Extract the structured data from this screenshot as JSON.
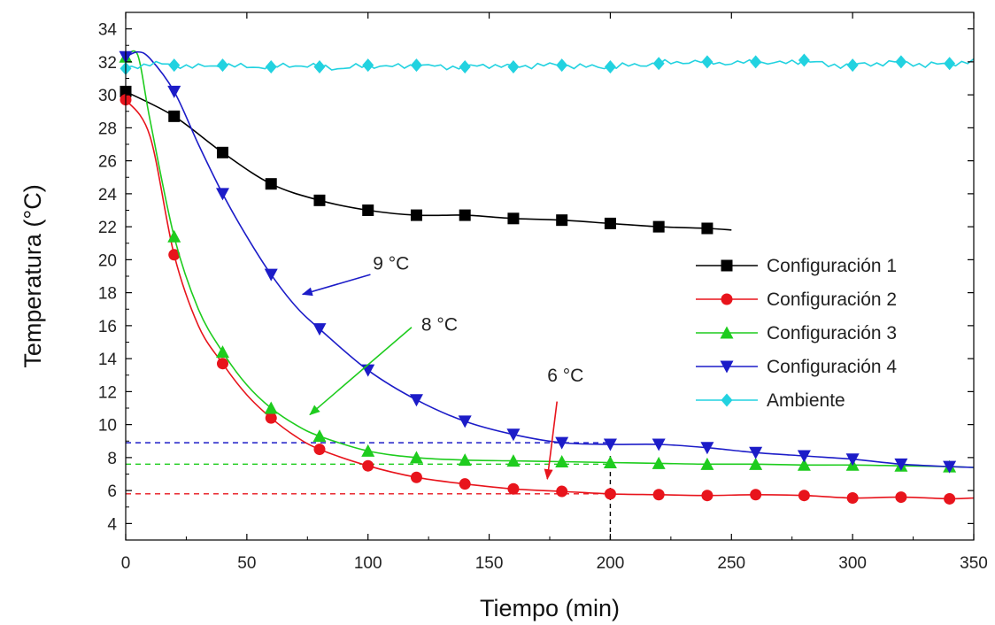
{
  "chart_data": {
    "type": "line",
    "xlabel": "Tiempo (min)",
    "ylabel": "Temperatura (°C)",
    "xlim": [
      0,
      350
    ],
    "ylim": [
      3,
      35
    ],
    "xticks": [
      0,
      50,
      100,
      150,
      200,
      250,
      300,
      350
    ],
    "yticks": [
      4,
      6,
      8,
      10,
      12,
      14,
      16,
      18,
      20,
      22,
      24,
      26,
      28,
      30,
      32,
      34
    ],
    "grid": false,
    "legend_position": "right",
    "series": [
      {
        "name": "Configuración 1",
        "color": "#000000",
        "marker": "square",
        "x": [
          0,
          20,
          40,
          60,
          80,
          100,
          120,
          140,
          160,
          180,
          200,
          220,
          240,
          250
        ],
        "values": [
          30.2,
          28.7,
          26.5,
          24.6,
          23.6,
          23.0,
          22.7,
          22.7,
          22.5,
          22.4,
          22.2,
          22.0,
          21.9,
          21.8
        ],
        "marker_x": [
          0,
          20,
          40,
          60,
          80,
          100,
          120,
          140,
          160,
          180,
          200,
          220,
          240
        ]
      },
      {
        "name": "Configuración 2",
        "color": "#e8141c",
        "marker": "circle",
        "x": [
          0,
          10,
          20,
          30,
          40,
          50,
          60,
          70,
          80,
          100,
          120,
          140,
          160,
          180,
          200,
          220,
          240,
          260,
          280,
          300,
          320,
          340,
          350
        ],
        "values": [
          29.7,
          27.5,
          20.3,
          16.0,
          13.7,
          11.8,
          10.4,
          9.3,
          8.5,
          7.5,
          6.8,
          6.4,
          6.1,
          5.95,
          5.8,
          5.75,
          5.7,
          5.75,
          5.7,
          5.55,
          5.6,
          5.5,
          5.55
        ],
        "marker_x": [
          0,
          20,
          40,
          60,
          80,
          100,
          120,
          140,
          160,
          180,
          200,
          220,
          240,
          260,
          280,
          300,
          320,
          340
        ]
      },
      {
        "name": "Configuración 3",
        "color": "#1ecc1e",
        "marker": "triangle-up",
        "x": [
          0,
          5,
          10,
          20,
          30,
          40,
          50,
          60,
          70,
          80,
          100,
          120,
          140,
          160,
          180,
          200,
          220,
          240,
          260,
          280,
          300,
          320,
          340,
          350
        ],
        "values": [
          32.3,
          32.4,
          28.5,
          21.4,
          17.0,
          14.4,
          12.4,
          11.0,
          10.0,
          9.3,
          8.4,
          8.0,
          7.85,
          7.8,
          7.75,
          7.7,
          7.65,
          7.6,
          7.6,
          7.55,
          7.55,
          7.5,
          7.45,
          7.4
        ],
        "marker_x": [
          0,
          20,
          40,
          60,
          80,
          100,
          120,
          140,
          160,
          180,
          200,
          220,
          240,
          260,
          280,
          300,
          320,
          340
        ]
      },
      {
        "name": "Configuración 4",
        "color": "#1c1cc8",
        "marker": "triangle-down",
        "x": [
          0,
          5,
          10,
          20,
          30,
          40,
          50,
          60,
          70,
          80,
          100,
          120,
          140,
          160,
          180,
          200,
          220,
          240,
          260,
          280,
          300,
          320,
          340,
          350
        ],
        "values": [
          32.3,
          32.6,
          32.2,
          30.2,
          27.0,
          24.0,
          21.4,
          19.1,
          17.2,
          15.8,
          13.3,
          11.5,
          10.2,
          9.4,
          8.9,
          8.8,
          8.8,
          8.6,
          8.3,
          8.1,
          7.9,
          7.6,
          7.45,
          7.4
        ],
        "marker_x": [
          0,
          20,
          40,
          60,
          80,
          100,
          120,
          140,
          160,
          180,
          200,
          220,
          240,
          260,
          280,
          300,
          320,
          340
        ]
      },
      {
        "name": "Ambiente",
        "color": "#22d2e0",
        "marker": "diamond",
        "x": [
          0,
          10,
          20,
          30,
          40,
          50,
          60,
          70,
          80,
          90,
          100,
          110,
          120,
          130,
          140,
          150,
          160,
          170,
          180,
          190,
          200,
          210,
          220,
          230,
          240,
          250,
          260,
          270,
          280,
          290,
          300,
          310,
          320,
          330,
          340,
          350
        ],
        "values": [
          31.6,
          31.9,
          31.8,
          31.7,
          31.8,
          31.7,
          31.7,
          31.8,
          31.7,
          31.6,
          31.8,
          31.7,
          31.8,
          31.7,
          31.7,
          31.8,
          31.7,
          31.8,
          31.8,
          31.7,
          31.7,
          31.8,
          31.9,
          32.0,
          32.0,
          31.9,
          32.0,
          31.9,
          32.1,
          31.8,
          31.8,
          31.9,
          32.0,
          31.8,
          31.9,
          32.0
        ],
        "marker_x": [
          0,
          20,
          40,
          60,
          80,
          100,
          120,
          140,
          160,
          180,
          200,
          220,
          240,
          260,
          280,
          300,
          320,
          340
        ]
      }
    ],
    "reference_lines": [
      {
        "y": 8.9,
        "x_end": 200,
        "color": "#1c1cc8"
      },
      {
        "y": 7.6,
        "x_end": 200,
        "color": "#1ecc1e"
      },
      {
        "y": 5.8,
        "x_end": 200,
        "color": "#e8141c"
      }
    ],
    "vertical_marker": {
      "x": 200,
      "y_from": 3,
      "y_to": 8.2,
      "color": "#000000"
    },
    "annotations": [
      {
        "text": "9 °C",
        "color": "#1c1cc8",
        "text_x": 102,
        "text_y": 19.4,
        "arrow_from": [
          101,
          19.1
        ],
        "arrow_to": [
          73,
          17.9
        ]
      },
      {
        "text": "8 °C",
        "color": "#1ecc1e",
        "text_x": 122,
        "text_y": 15.7,
        "arrow_from": [
          118,
          15.9
        ],
        "arrow_to": [
          76,
          10.6
        ]
      },
      {
        "text": "6 °C",
        "color": "#e8141c",
        "text_x": 174,
        "text_y": 12.6,
        "arrow_from": [
          178,
          11.4
        ],
        "arrow_to": [
          174,
          6.7
        ]
      }
    ]
  }
}
